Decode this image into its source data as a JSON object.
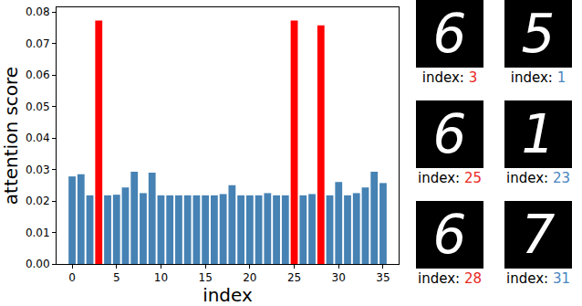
{
  "chart_data": {
    "type": "bar",
    "x_label": "index",
    "y_label": "attention score",
    "x": [
      0,
      1,
      2,
      3,
      4,
      5,
      6,
      7,
      8,
      9,
      10,
      11,
      12,
      13,
      14,
      15,
      16,
      17,
      18,
      19,
      20,
      21,
      22,
      23,
      24,
      25,
      26,
      27,
      28,
      29,
      30,
      31,
      32,
      33,
      34,
      35
    ],
    "values": [
      0.0278,
      0.0285,
      0.0218,
      0.0773,
      0.0218,
      0.022,
      0.0243,
      0.0293,
      0.0225,
      0.029,
      0.0218,
      0.0218,
      0.0218,
      0.0218,
      0.0218,
      0.0218,
      0.0218,
      0.0222,
      0.025,
      0.0218,
      0.0218,
      0.0218,
      0.0225,
      0.0218,
      0.0218,
      0.0773,
      0.0218,
      0.0222,
      0.0758,
      0.0218,
      0.026,
      0.0218,
      0.0225,
      0.0243,
      0.0293,
      0.0257
    ],
    "colors": [
      "#4682b4",
      "#4682b4",
      "#4682b4",
      "#ff0000",
      "#4682b4",
      "#4682b4",
      "#4682b4",
      "#4682b4",
      "#4682b4",
      "#4682b4",
      "#4682b4",
      "#4682b4",
      "#4682b4",
      "#4682b4",
      "#4682b4",
      "#4682b4",
      "#4682b4",
      "#4682b4",
      "#4682b4",
      "#4682b4",
      "#4682b4",
      "#4682b4",
      "#4682b4",
      "#4682b4",
      "#4682b4",
      "#ff0000",
      "#4682b4",
      "#4682b4",
      "#ff0000",
      "#4682b4",
      "#4682b4",
      "#4682b4",
      "#4682b4",
      "#4682b4",
      "#4682b4",
      "#4682b4"
    ],
    "xlim": [
      -1.75,
      36.75
    ],
    "xticks": [
      0,
      5,
      10,
      15,
      20,
      25,
      30,
      35
    ],
    "ylim": [
      0,
      0.0815
    ],
    "yticks": [
      {
        "value": 0,
        "label": "0.00"
      },
      {
        "value": 0.01,
        "label": "0.01"
      },
      {
        "value": 0.02,
        "label": "0.02"
      },
      {
        "value": 0.03,
        "label": "0.03"
      },
      {
        "value": 0.04,
        "label": "0.04"
      },
      {
        "value": 0.05,
        "label": "0.05"
      },
      {
        "value": 0.06,
        "label": "0.06"
      },
      {
        "value": 0.07,
        "label": "0.07"
      },
      {
        "value": 0.08,
        "label": "0.08"
      }
    ],
    "grid": false
  },
  "panels": [
    {
      "digit": "6",
      "label": "index:",
      "index": 3,
      "color": "#e8281e"
    },
    {
      "digit": "5",
      "label": "index:",
      "index": 1,
      "color": "#4a86c0"
    },
    {
      "digit": "6",
      "label": "index:",
      "index": 25,
      "color": "#e8281e"
    },
    {
      "digit": "1",
      "label": "index:",
      "index": 23,
      "color": "#4a86c0"
    },
    {
      "digit": "6",
      "label": "index:",
      "index": 28,
      "color": "#e8281e"
    },
    {
      "digit": "7",
      "label": "index:",
      "index": 31,
      "color": "#4a86c0"
    }
  ]
}
